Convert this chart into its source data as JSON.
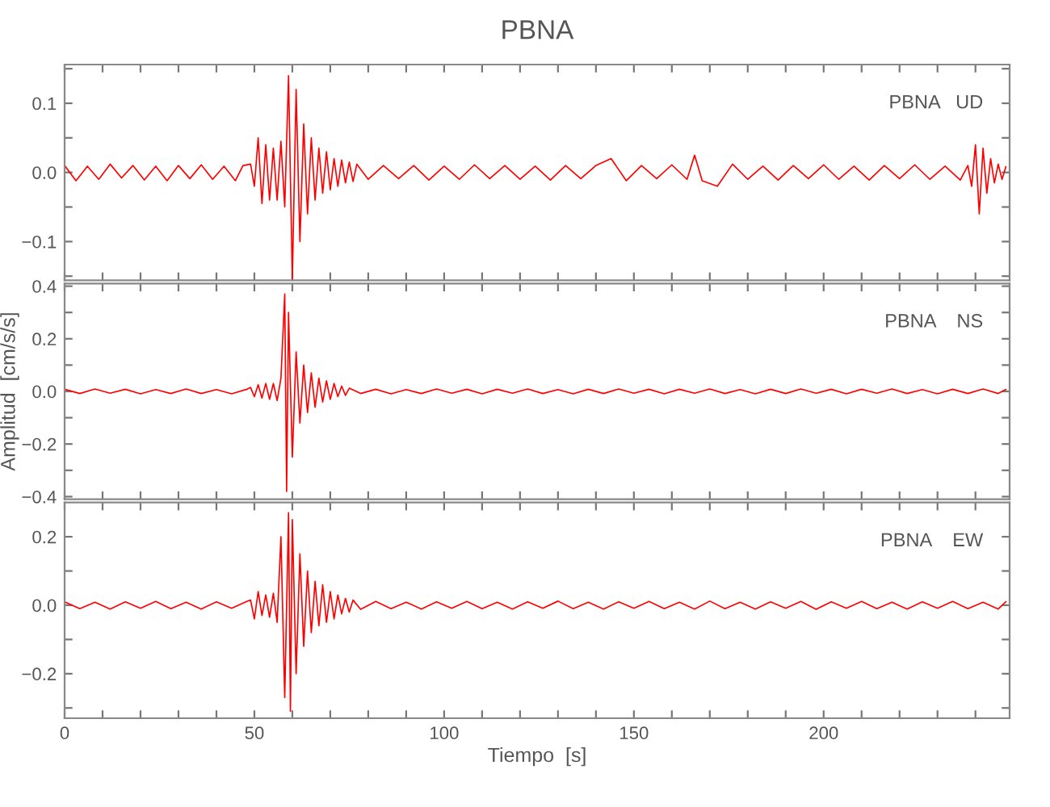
{
  "chart_data": [
    {
      "type": "line",
      "title": "PBNA",
      "annotations": [
        "PBNA   UD"
      ],
      "tick_labels": "y",
      "grid": false,
      "xlim": [
        0,
        249
      ],
      "ylim": [
        -0.156,
        0.156
      ],
      "xticks": [
        0,
        {
          "value": 10,
          "label": null
        },
        {
          "value": 20,
          "label": null
        },
        {
          "value": 30,
          "label": null
        },
        {
          "value": 40,
          "label": null
        },
        50,
        {
          "value": 60,
          "label": null
        },
        {
          "value": 70,
          "label": null
        },
        {
          "value": 80,
          "label": null
        },
        {
          "value": 90,
          "label": null
        },
        100,
        {
          "value": 110,
          "label": null
        },
        {
          "value": 120,
          "label": null
        },
        {
          "value": 130,
          "label": null
        },
        {
          "value": 140,
          "label": null
        },
        150,
        {
          "value": 160,
          "label": null
        },
        {
          "value": 170,
          "label": null
        },
        {
          "value": 180,
          "label": null
        },
        {
          "value": 190,
          "label": null
        },
        200,
        {
          "value": 210,
          "label": null
        },
        {
          "value": 220,
          "label": null
        },
        {
          "value": 230,
          "label": null
        },
        {
          "value": 240,
          "label": null
        }
      ],
      "yticks": [
        {
          "value": -0.15,
          "label": null
        },
        {
          "value": -0.1,
          "label": "−0.1"
        },
        {
          "value": -0.05,
          "label": null
        },
        {
          "value": 0,
          "label": "0.0"
        },
        {
          "value": 0.05,
          "label": null
        },
        {
          "value": 0.1,
          "label": "0.1"
        },
        {
          "value": 0.15,
          "label": null
        }
      ],
      "series": [
        {
          "color": "#ff0000",
          "x": [
            0,
            3,
            6,
            9,
            12,
            15,
            18,
            21,
            24,
            27,
            30,
            33,
            36,
            39,
            42,
            45,
            47,
            49,
            50,
            51,
            52,
            53,
            54,
            55,
            56,
            57,
            58,
            59,
            60,
            61,
            62,
            63,
            64,
            65,
            66,
            67,
            68,
            69,
            70,
            71,
            72,
            73,
            74,
            75,
            76,
            77,
            80,
            84,
            88,
            92,
            96,
            100,
            104,
            108,
            112,
            116,
            120,
            124,
            128,
            132,
            136,
            140,
            144,
            148,
            152,
            156,
            160,
            164,
            166,
            168,
            172,
            176,
            180,
            184,
            188,
            192,
            196,
            200,
            204,
            208,
            212,
            216,
            220,
            224,
            228,
            232,
            236,
            238,
            239,
            240,
            241,
            242,
            243,
            244,
            245,
            246,
            247,
            248
          ],
          "values": [
            0.01,
            -0.012,
            0.009,
            -0.01,
            0.012,
            -0.008,
            0.01,
            -0.011,
            0.009,
            -0.012,
            0.01,
            -0.009,
            0.011,
            -0.01,
            0.009,
            -0.012,
            0.01,
            0.012,
            -0.02,
            0.05,
            -0.045,
            0.04,
            -0.04,
            0.035,
            -0.04,
            0.045,
            -0.05,
            0.14,
            -0.155,
            0.12,
            -0.1,
            0.07,
            -0.06,
            0.05,
            -0.04,
            0.035,
            -0.03,
            0.03,
            -0.025,
            0.02,
            -0.02,
            0.018,
            -0.015,
            0.015,
            -0.013,
            0.012,
            -0.01,
            0.01,
            -0.009,
            0.01,
            -0.011,
            0.009,
            -0.01,
            0.011,
            -0.009,
            0.01,
            -0.01,
            0.009,
            -0.011,
            0.01,
            -0.009,
            0.01,
            0.02,
            -0.012,
            0.01,
            -0.009,
            0.011,
            -0.01,
            0.025,
            -0.012,
            -0.02,
            0.012,
            -0.01,
            0.009,
            -0.011,
            0.01,
            -0.009,
            0.011,
            -0.01,
            0.009,
            -0.011,
            0.01,
            -0.009,
            0.011,
            -0.01,
            0.009,
            -0.011,
            0.01,
            -0.02,
            0.04,
            -0.06,
            0.035,
            -0.03,
            0.02,
            -0.015,
            0.012,
            -0.01,
            0.008
          ]
        }
      ]
    },
    {
      "type": "line",
      "annotations": [
        "PBNA    NS"
      ],
      "ylabel": "Amplitud  [cm/s/s]",
      "tick_labels": "y",
      "grid": false,
      "xlim": [
        0,
        249
      ],
      "ylim": [
        -0.41,
        0.41
      ],
      "xticks": [
        0,
        {
          "value": 10,
          "label": null
        },
        {
          "value": 20,
          "label": null
        },
        {
          "value": 30,
          "label": null
        },
        {
          "value": 40,
          "label": null
        },
        50,
        {
          "value": 60,
          "label": null
        },
        {
          "value": 70,
          "label": null
        },
        {
          "value": 80,
          "label": null
        },
        {
          "value": 90,
          "label": null
        },
        100,
        {
          "value": 110,
          "label": null
        },
        {
          "value": 120,
          "label": null
        },
        {
          "value": 130,
          "label": null
        },
        {
          "value": 140,
          "label": null
        },
        150,
        {
          "value": 160,
          "label": null
        },
        {
          "value": 170,
          "label": null
        },
        {
          "value": 180,
          "label": null
        },
        {
          "value": 190,
          "label": null
        },
        200,
        {
          "value": 210,
          "label": null
        },
        {
          "value": 220,
          "label": null
        },
        {
          "value": 230,
          "label": null
        },
        {
          "value": 240,
          "label": null
        }
      ],
      "yticks": [
        {
          "value": -0.4,
          "label": "−0.4"
        },
        {
          "value": -0.3,
          "label": null
        },
        {
          "value": -0.2,
          "label": "−0.2"
        },
        {
          "value": -0.1,
          "label": null
        },
        {
          "value": 0,
          "label": "0.0"
        },
        {
          "value": 0.1,
          "label": null
        },
        {
          "value": 0.2,
          "label": "0.2"
        },
        {
          "value": 0.3,
          "label": null
        },
        {
          "value": 0.4,
          "label": "0.4"
        }
      ],
      "series": [
        {
          "color": "#ff0000",
          "x": [
            0,
            4,
            8,
            12,
            16,
            20,
            24,
            28,
            32,
            36,
            40,
            44,
            48,
            49,
            50,
            51,
            52,
            53,
            54,
            55,
            56,
            57,
            58,
            58.5,
            59,
            60,
            61,
            62,
            63,
            64,
            65,
            66,
            67,
            68,
            69,
            70,
            71,
            72,
            73,
            74,
            75,
            78,
            82,
            86,
            90,
            94,
            98,
            102,
            106,
            110,
            114,
            118,
            122,
            126,
            130,
            134,
            138,
            142,
            146,
            150,
            154,
            158,
            162,
            166,
            170,
            174,
            178,
            182,
            186,
            190,
            194,
            198,
            202,
            206,
            210,
            214,
            218,
            222,
            226,
            230,
            234,
            238,
            242,
            246,
            248
          ],
          "values": [
            0.008,
            -0.008,
            0.009,
            -0.007,
            0.008,
            -0.009,
            0.007,
            -0.008,
            0.009,
            -0.008,
            0.007,
            -0.009,
            0.008,
            0.015,
            -0.02,
            0.025,
            -0.025,
            0.03,
            -0.03,
            0.03,
            -0.035,
            0.05,
            0.37,
            -0.38,
            0.3,
            -0.25,
            0.15,
            -0.12,
            0.1,
            -0.08,
            0.07,
            -0.06,
            0.05,
            -0.04,
            0.04,
            -0.03,
            0.03,
            -0.02,
            0.02,
            -0.015,
            0.012,
            -0.008,
            0.008,
            -0.009,
            0.007,
            -0.008,
            0.009,
            -0.007,
            0.008,
            -0.009,
            0.008,
            -0.007,
            0.009,
            -0.008,
            0.007,
            -0.009,
            0.008,
            -0.008,
            0.009,
            -0.007,
            0.008,
            -0.009,
            0.008,
            -0.007,
            0.009,
            -0.008,
            0.007,
            -0.009,
            0.008,
            -0.008,
            0.009,
            -0.007,
            0.008,
            -0.009,
            0.008,
            -0.007,
            0.009,
            -0.008,
            0.007,
            -0.009,
            0.008,
            -0.008,
            0.009,
            -0.008,
            0.007
          ]
        }
      ]
    },
    {
      "type": "line",
      "annotations": [
        "PBNA    EW"
      ],
      "xlabel": "Tiempo  [s]",
      "grid": false,
      "xlim": [
        0,
        249
      ],
      "ylim": [
        -0.33,
        0.3
      ],
      "xticks": [
        0,
        {
          "value": 10,
          "label": null
        },
        {
          "value": 20,
          "label": null
        },
        {
          "value": 30,
          "label": null
        },
        {
          "value": 40,
          "label": null
        },
        50,
        {
          "value": 60,
          "label": null
        },
        {
          "value": 70,
          "label": null
        },
        {
          "value": 80,
          "label": null
        },
        {
          "value": 90,
          "label": null
        },
        100,
        {
          "value": 110,
          "label": null
        },
        {
          "value": 120,
          "label": null
        },
        {
          "value": 130,
          "label": null
        },
        {
          "value": 140,
          "label": null
        },
        150,
        {
          "value": 160,
          "label": null
        },
        {
          "value": 170,
          "label": null
        },
        {
          "value": 180,
          "label": null
        },
        {
          "value": 190,
          "label": null
        },
        200,
        {
          "value": 210,
          "label": null
        },
        {
          "value": 220,
          "label": null
        },
        {
          "value": 230,
          "label": null
        },
        {
          "value": 240,
          "label": null
        }
      ],
      "yticks": [
        {
          "value": -0.3,
          "label": null
        },
        {
          "value": -0.2,
          "label": "−0.2"
        },
        {
          "value": -0.1,
          "label": null
        },
        {
          "value": 0,
          "label": "0.0"
        },
        {
          "value": 0.1,
          "label": null
        },
        {
          "value": 0.2,
          "label": "0.2"
        }
      ],
      "series": [
        {
          "color": "#ff0000",
          "x": [
            0,
            4,
            8,
            12,
            16,
            20,
            24,
            28,
            32,
            36,
            40,
            44,
            48,
            49,
            50,
            51,
            52,
            53,
            54,
            55,
            56,
            57,
            58,
            59,
            59.5,
            60,
            61,
            62,
            63,
            64,
            65,
            66,
            67,
            68,
            69,
            70,
            71,
            72,
            73,
            74,
            75,
            76,
            78,
            82,
            86,
            90,
            94,
            98,
            102,
            106,
            110,
            114,
            118,
            122,
            126,
            130,
            134,
            138,
            142,
            146,
            150,
            154,
            158,
            162,
            166,
            170,
            174,
            178,
            182,
            186,
            190,
            194,
            198,
            202,
            206,
            210,
            214,
            218,
            222,
            226,
            230,
            234,
            238,
            242,
            246,
            248
          ],
          "values": [
            0.01,
            -0.01,
            0.009,
            -0.011,
            0.01,
            -0.009,
            0.011,
            -0.01,
            0.009,
            -0.011,
            0.01,
            -0.009,
            0.011,
            0.015,
            -0.04,
            0.04,
            -0.03,
            0.03,
            -0.035,
            0.035,
            -0.05,
            0.2,
            -0.27,
            0.27,
            -0.31,
            0.25,
            -0.2,
            0.15,
            -0.12,
            0.1,
            -0.08,
            0.07,
            -0.06,
            0.06,
            -0.05,
            0.04,
            -0.04,
            0.03,
            -0.025,
            0.02,
            -0.02,
            0.015,
            -0.012,
            0.011,
            -0.01,
            0.009,
            -0.011,
            0.01,
            -0.009,
            0.011,
            -0.01,
            0.009,
            -0.011,
            0.01,
            -0.009,
            0.012,
            -0.01,
            0.009,
            -0.011,
            0.01,
            -0.009,
            0.011,
            -0.01,
            0.009,
            -0.011,
            0.012,
            -0.01,
            0.009,
            -0.011,
            0.01,
            -0.009,
            0.011,
            -0.012,
            0.01,
            -0.009,
            0.011,
            -0.01,
            0.009,
            -0.011,
            0.01,
            -0.009,
            0.011,
            -0.01,
            0.009,
            -0.011,
            0.01
          ]
        }
      ]
    }
  ]
}
